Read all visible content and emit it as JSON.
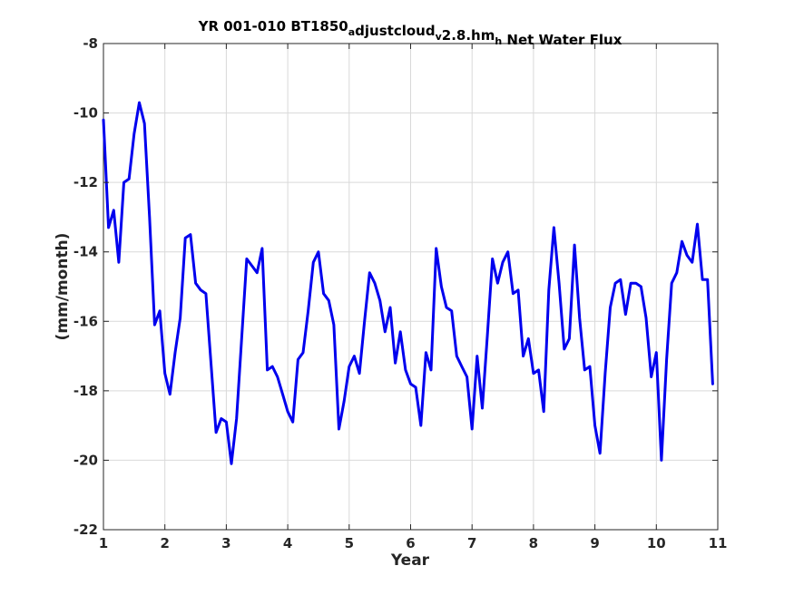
{
  "chart_data": {
    "type": "line",
    "title": {
      "parts": [
        {
          "text": "YR 001-010 BT1850",
          "sub": false
        },
        {
          "text": "a",
          "sub": true
        },
        {
          "text": "djustcloud",
          "sub": false
        },
        {
          "text": "v",
          "sub": true
        },
        {
          "text": "2.8.hm",
          "sub": false
        },
        {
          "text": "h",
          "sub": true
        },
        {
          "text": " Net Water Flux",
          "sub": false
        }
      ]
    },
    "xlabel": "Year",
    "ylabel": "(mm/month)",
    "xlim": [
      1,
      11
    ],
    "ylim": [
      -22,
      -8
    ],
    "xticks": [
      1,
      2,
      3,
      4,
      5,
      6,
      7,
      8,
      9,
      10,
      11
    ],
    "xtick_labels": [
      "1",
      "2",
      "3",
      "4",
      "5",
      "6",
      "7",
      "8",
      "9",
      "10",
      "11"
    ],
    "yticks": [
      -22,
      -20,
      -18,
      -16,
      -14,
      -12,
      -10,
      -8
    ],
    "ytick_labels": [
      "-22",
      "-20",
      "-18",
      "-16",
      "-14",
      "-12",
      "-10",
      "-8"
    ],
    "grid": true,
    "colors": {
      "line": "#0000ee",
      "grid": "#d9d9d9",
      "axis": "#262626"
    },
    "series": [
      {
        "x": [
          1.0,
          1.083,
          1.167,
          1.25,
          1.333,
          1.417,
          1.5,
          1.583,
          1.667,
          1.75,
          1.833,
          1.917,
          2.0,
          2.083,
          2.167,
          2.25,
          2.333,
          2.417,
          2.5,
          2.583,
          2.667,
          2.75,
          2.833,
          2.917,
          3.0,
          3.083,
          3.167,
          3.25,
          3.333,
          3.417,
          3.5,
          3.583,
          3.667,
          3.75,
          3.833,
          3.917,
          4.0,
          4.083,
          4.167,
          4.25,
          4.333,
          4.417,
          4.5,
          4.583,
          4.667,
          4.75,
          4.833,
          4.917,
          5.0,
          5.083,
          5.167,
          5.25,
          5.333,
          5.417,
          5.5,
          5.583,
          5.667,
          5.75,
          5.833,
          5.917,
          6.0,
          6.083,
          6.167,
          6.25,
          6.333,
          6.417,
          6.5,
          6.583,
          6.667,
          6.75,
          6.833,
          6.917,
          7.0,
          7.083,
          7.167,
          7.25,
          7.333,
          7.417,
          7.5,
          7.583,
          7.667,
          7.75,
          7.833,
          7.917,
          8.0,
          8.083,
          8.167,
          8.25,
          8.333,
          8.417,
          8.5,
          8.583,
          8.667,
          8.75,
          8.833,
          8.917,
          9.0,
          9.083,
          9.167,
          9.25,
          9.333,
          9.417,
          9.5,
          9.583,
          9.667,
          9.75,
          9.833,
          9.917,
          10.0,
          10.083,
          10.167,
          10.25,
          10.333,
          10.417,
          10.5,
          10.583,
          10.667,
          10.75,
          10.833,
          10.917
        ],
        "values": [
          -10.2,
          -13.3,
          -12.8,
          -14.3,
          -12.0,
          -11.9,
          -10.6,
          -9.7,
          -10.3,
          -13.0,
          -16.1,
          -15.7,
          -17.5,
          -18.1,
          -16.9,
          -15.9,
          -13.6,
          -13.5,
          -14.9,
          -15.1,
          -15.2,
          -17.2,
          -19.2,
          -18.8,
          -18.9,
          -20.1,
          -18.8,
          -16.5,
          -14.2,
          -14.4,
          -14.6,
          -13.9,
          -17.4,
          -17.3,
          -17.6,
          -18.1,
          -18.6,
          -18.9,
          -17.1,
          -16.9,
          -15.7,
          -14.3,
          -14.0,
          -15.2,
          -15.4,
          -16.1,
          -19.1,
          -18.3,
          -17.3,
          -17.0,
          -17.5,
          -16.0,
          -14.6,
          -14.9,
          -15.4,
          -16.3,
          -15.6,
          -17.2,
          -16.3,
          -17.4,
          -17.8,
          -17.9,
          -19.0,
          -16.9,
          -17.4,
          -13.9,
          -15.0,
          -15.6,
          -15.7,
          -17.0,
          -17.3,
          -17.6,
          -19.1,
          -17.0,
          -18.5,
          -16.4,
          -14.2,
          -14.9,
          -14.3,
          -14.0,
          -15.2,
          -15.1,
          -17.0,
          -16.5,
          -17.5,
          -17.4,
          -18.6,
          -15.1,
          -13.3,
          -14.9,
          -16.8,
          -16.5,
          -13.8,
          -15.9,
          -17.4,
          -17.3,
          -19.0,
          -19.8,
          -17.5,
          -15.6,
          -14.9,
          -14.8,
          -15.8,
          -14.9,
          -14.9,
          -15.0,
          -15.9,
          -17.6,
          -16.9,
          -20.0,
          -17.1,
          -14.9,
          -14.6,
          -13.7,
          -14.1,
          -14.3,
          -13.2,
          -14.8,
          -14.8,
          -17.8
        ]
      }
    ]
  }
}
